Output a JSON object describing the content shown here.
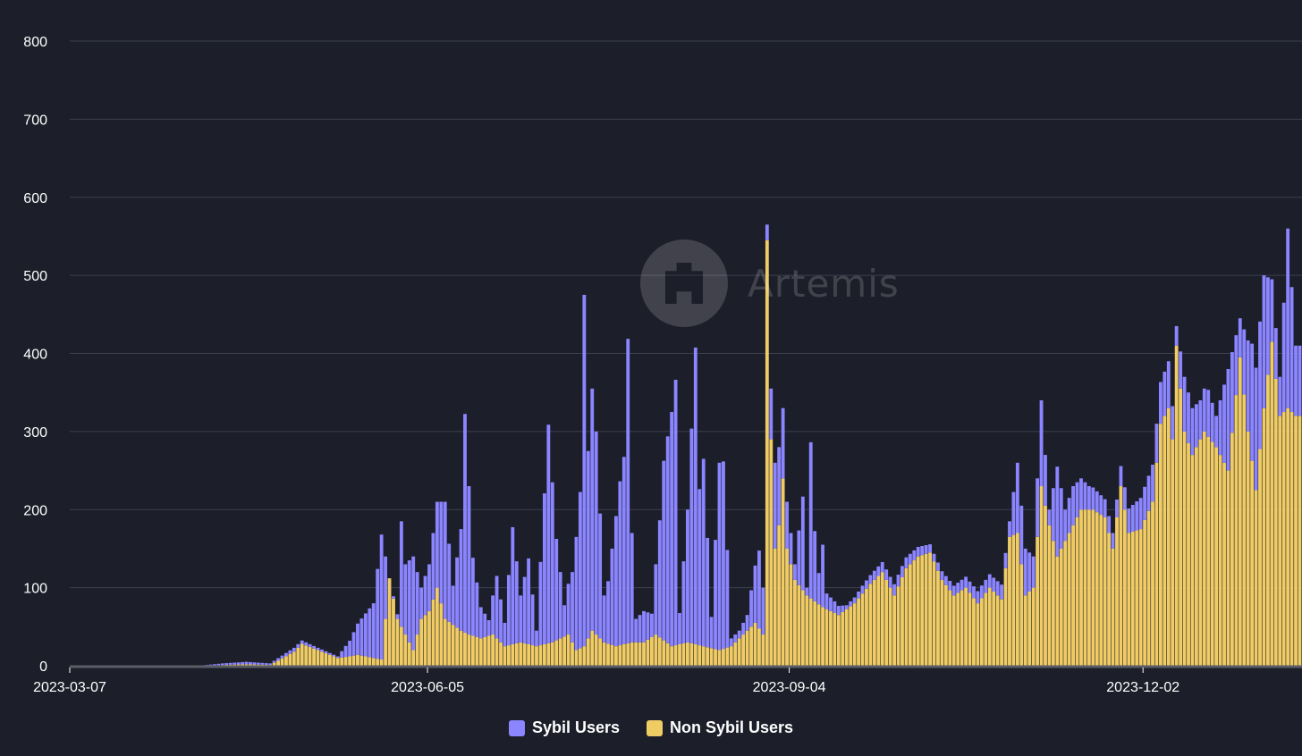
{
  "chart_data": {
    "type": "bar",
    "stacked": true,
    "x_start": "2023-03-07",
    "x_end": "2024-01-10",
    "xticks": [
      "2023-03-07",
      "2023-06-05",
      "2023-09-04",
      "2023-12-02"
    ],
    "yticks": [
      0,
      100,
      200,
      300,
      400,
      500,
      600,
      700,
      800
    ],
    "ylim": [
      0,
      800
    ],
    "grid": true,
    "legend_position": "bottom",
    "watermark": "Artemis",
    "series": [
      {
        "name": "Sybil Users",
        "color": "#8b85ff",
        "anchors": [
          [
            "2023-03-07",
            0
          ],
          [
            "2023-04-08",
            0
          ],
          [
            "2023-04-14",
            2
          ],
          [
            "2023-04-20",
            3
          ],
          [
            "2023-04-26",
            2
          ],
          [
            "2023-05-02",
            5
          ],
          [
            "2023-05-08",
            3
          ],
          [
            "2023-05-13",
            2
          ],
          [
            "2023-05-16",
            20
          ],
          [
            "2023-05-18",
            40
          ],
          [
            "2023-05-22",
            70
          ],
          [
            "2023-05-24",
            160
          ],
          [
            "2023-05-26",
            0
          ],
          [
            "2023-05-28",
            6
          ],
          [
            "2023-05-29",
            135
          ],
          [
            "2023-05-30",
            90
          ],
          [
            "2023-06-01",
            120
          ],
          [
            "2023-06-03",
            40
          ],
          [
            "2023-06-05",
            60
          ],
          [
            "2023-06-07",
            110
          ],
          [
            "2023-06-09",
            150
          ],
          [
            "2023-06-11",
            50
          ],
          [
            "2023-06-13",
            130
          ],
          [
            "2023-06-14",
            280
          ],
          [
            "2023-06-16",
            100
          ],
          [
            "2023-06-18",
            40
          ],
          [
            "2023-06-20",
            20
          ],
          [
            "2023-06-22",
            80
          ],
          [
            "2023-06-24",
            30
          ],
          [
            "2023-06-26",
            150
          ],
          [
            "2023-06-28",
            60
          ],
          [
            "2023-06-30",
            110
          ],
          [
            "2023-07-02",
            20
          ],
          [
            "2023-07-05",
            280
          ],
          [
            "2023-07-07",
            130
          ],
          [
            "2023-07-09",
            40
          ],
          [
            "2023-07-11",
            90
          ],
          [
            "2023-07-13",
            200
          ],
          [
            "2023-07-14",
            450
          ],
          [
            "2023-07-15",
            240
          ],
          [
            "2023-07-16",
            310
          ],
          [
            "2023-07-17",
            260
          ],
          [
            "2023-07-19",
            60
          ],
          [
            "2023-07-20",
            80
          ],
          [
            "2023-07-23",
            210
          ],
          [
            "2023-07-24",
            240
          ],
          [
            "2023-07-25",
            390
          ],
          [
            "2023-07-26",
            140
          ],
          [
            "2023-07-27",
            30
          ],
          [
            "2023-07-29",
            40
          ],
          [
            "2023-07-31",
            30
          ],
          [
            "2023-08-02",
            150
          ],
          [
            "2023-08-03",
            230
          ],
          [
            "2023-08-05",
            300
          ],
          [
            "2023-08-06",
            340
          ],
          [
            "2023-08-07",
            40
          ],
          [
            "2023-08-09",
            170
          ],
          [
            "2023-08-11",
            380
          ],
          [
            "2023-08-12",
            200
          ],
          [
            "2023-08-13",
            240
          ],
          [
            "2023-08-15",
            40
          ],
          [
            "2023-08-17",
            240
          ],
          [
            "2023-08-18",
            240
          ],
          [
            "2023-08-20",
            10
          ],
          [
            "2023-08-22",
            10
          ],
          [
            "2023-08-24",
            20
          ],
          [
            "2023-08-27",
            100
          ],
          [
            "2023-08-29",
            20
          ],
          [
            "2023-08-31",
            110
          ],
          [
            "2023-09-02",
            90
          ],
          [
            "2023-09-03",
            60
          ],
          [
            "2023-09-05",
            20
          ],
          [
            "2023-09-07",
            120
          ],
          [
            "2023-09-08",
            10
          ],
          [
            "2023-09-09",
            200
          ],
          [
            "2023-09-10",
            90
          ],
          [
            "2023-09-11",
            40
          ],
          [
            "2023-09-12",
            80
          ],
          [
            "2023-09-13",
            20
          ],
          [
            "2023-09-15",
            15
          ],
          [
            "2023-09-18",
            5
          ],
          [
            "2023-09-22",
            10
          ],
          [
            "2023-10-01",
            15
          ],
          [
            "2023-10-10",
            10
          ],
          [
            "2023-10-20",
            15
          ],
          [
            "2023-10-29",
            20
          ],
          [
            "2023-10-31",
            90
          ],
          [
            "2023-11-02",
            60
          ],
          [
            "2023-11-04",
            40
          ],
          [
            "2023-11-06",
            110
          ],
          [
            "2023-11-08",
            20
          ],
          [
            "2023-11-10",
            115
          ],
          [
            "2023-11-12",
            40
          ],
          [
            "2023-11-14",
            50
          ],
          [
            "2023-11-18",
            30
          ],
          [
            "2023-11-24",
            20
          ],
          [
            "2023-12-01",
            40
          ],
          [
            "2023-12-05",
            50
          ],
          [
            "2023-12-08",
            60
          ],
          [
            "2023-12-10",
            25
          ],
          [
            "2023-12-12",
            70
          ],
          [
            "2023-12-14",
            60
          ],
          [
            "2023-12-16",
            50
          ],
          [
            "2023-12-18",
            60
          ],
          [
            "2023-12-20",
            40
          ],
          [
            "2023-12-23",
            130
          ],
          [
            "2023-12-26",
            50
          ],
          [
            "2023-12-29",
            150
          ],
          [
            "2024-01-01",
            170
          ],
          [
            "2024-01-03",
            80
          ],
          [
            "2024-01-05",
            50
          ],
          [
            "2024-01-07",
            230
          ],
          [
            "2024-01-09",
            90
          ]
        ]
      },
      {
        "name": "Non Sybil Users",
        "color": "#f0cc65",
        "anchors": [
          [
            "2023-03-07",
            0
          ],
          [
            "2023-04-08",
            0
          ],
          [
            "2023-04-14",
            1
          ],
          [
            "2023-04-20",
            2
          ],
          [
            "2023-04-26",
            1
          ],
          [
            "2023-05-02",
            18
          ],
          [
            "2023-05-04",
            28
          ],
          [
            "2023-05-08",
            20
          ],
          [
            "2023-05-13",
            10
          ],
          [
            "2023-05-16",
            12
          ],
          [
            "2023-05-18",
            14
          ],
          [
            "2023-05-20",
            12
          ],
          [
            "2023-05-24",
            8
          ],
          [
            "2023-05-26",
            112
          ],
          [
            "2023-05-28",
            60
          ],
          [
            "2023-05-30",
            40
          ],
          [
            "2023-06-01",
            20
          ],
          [
            "2023-06-03",
            60
          ],
          [
            "2023-06-05",
            70
          ],
          [
            "2023-06-07",
            100
          ],
          [
            "2023-06-09",
            60
          ],
          [
            "2023-06-13",
            45
          ],
          [
            "2023-06-15",
            40
          ],
          [
            "2023-06-18",
            35
          ],
          [
            "2023-06-21",
            40
          ],
          [
            "2023-06-24",
            25
          ],
          [
            "2023-06-28",
            30
          ],
          [
            "2023-07-02",
            25
          ],
          [
            "2023-07-06",
            30
          ],
          [
            "2023-07-10",
            40
          ],
          [
            "2023-07-12",
            20
          ],
          [
            "2023-07-14",
            25
          ],
          [
            "2023-07-16",
            45
          ],
          [
            "2023-07-19",
            30
          ],
          [
            "2023-07-22",
            25
          ],
          [
            "2023-07-26",
            30
          ],
          [
            "2023-07-29",
            30
          ],
          [
            "2023-08-01",
            40
          ],
          [
            "2023-08-05",
            25
          ],
          [
            "2023-08-09",
            30
          ],
          [
            "2023-08-13",
            25
          ],
          [
            "2023-08-17",
            20
          ],
          [
            "2023-08-20",
            25
          ],
          [
            "2023-08-23",
            40
          ],
          [
            "2023-08-26",
            55
          ],
          [
            "2023-08-28",
            40
          ],
          [
            "2023-08-29",
            545
          ],
          [
            "2023-08-30",
            290
          ],
          [
            "2023-08-31",
            150
          ],
          [
            "2023-09-01",
            180
          ],
          [
            "2023-09-02",
            240
          ],
          [
            "2023-09-03",
            150
          ],
          [
            "2023-09-05",
            110
          ],
          [
            "2023-09-08",
            90
          ],
          [
            "2023-09-12",
            75
          ],
          [
            "2023-09-16",
            65
          ],
          [
            "2023-09-20",
            80
          ],
          [
            "2023-09-24",
            105
          ],
          [
            "2023-09-27",
            120
          ],
          [
            "2023-09-30",
            90
          ],
          [
            "2023-10-03",
            125
          ],
          [
            "2023-10-06",
            140
          ],
          [
            "2023-10-09",
            145
          ],
          [
            "2023-10-12",
            110
          ],
          [
            "2023-10-15",
            90
          ],
          [
            "2023-10-18",
            100
          ],
          [
            "2023-10-21",
            80
          ],
          [
            "2023-10-24",
            100
          ],
          [
            "2023-10-27",
            85
          ],
          [
            "2023-10-29",
            165
          ],
          [
            "2023-10-31",
            170
          ],
          [
            "2023-11-02",
            90
          ],
          [
            "2023-11-04",
            100
          ],
          [
            "2023-11-06",
            230
          ],
          [
            "2023-11-08",
            180
          ],
          [
            "2023-11-10",
            140
          ],
          [
            "2023-11-13",
            170
          ],
          [
            "2023-11-16",
            200
          ],
          [
            "2023-11-19",
            200
          ],
          [
            "2023-11-22",
            190
          ],
          [
            "2023-11-24",
            150
          ],
          [
            "2023-11-26",
            230
          ],
          [
            "2023-11-28",
            170
          ],
          [
            "2023-12-01",
            175
          ],
          [
            "2023-12-04",
            210
          ],
          [
            "2023-12-06",
            310
          ],
          [
            "2023-12-08",
            330
          ],
          [
            "2023-12-09",
            290
          ],
          [
            "2023-12-10",
            410
          ],
          [
            "2023-12-12",
            300
          ],
          [
            "2023-12-14",
            270
          ],
          [
            "2023-12-17",
            300
          ],
          [
            "2023-12-20",
            280
          ],
          [
            "2023-12-23",
            250
          ],
          [
            "2023-12-26",
            395
          ],
          [
            "2023-12-28",
            300
          ],
          [
            "2023-12-30",
            225
          ],
          [
            "2024-01-01",
            330
          ],
          [
            "2024-01-03",
            415
          ],
          [
            "2024-01-05",
            320
          ],
          [
            "2024-01-07",
            330
          ],
          [
            "2024-01-09",
            320
          ]
        ]
      }
    ]
  }
}
